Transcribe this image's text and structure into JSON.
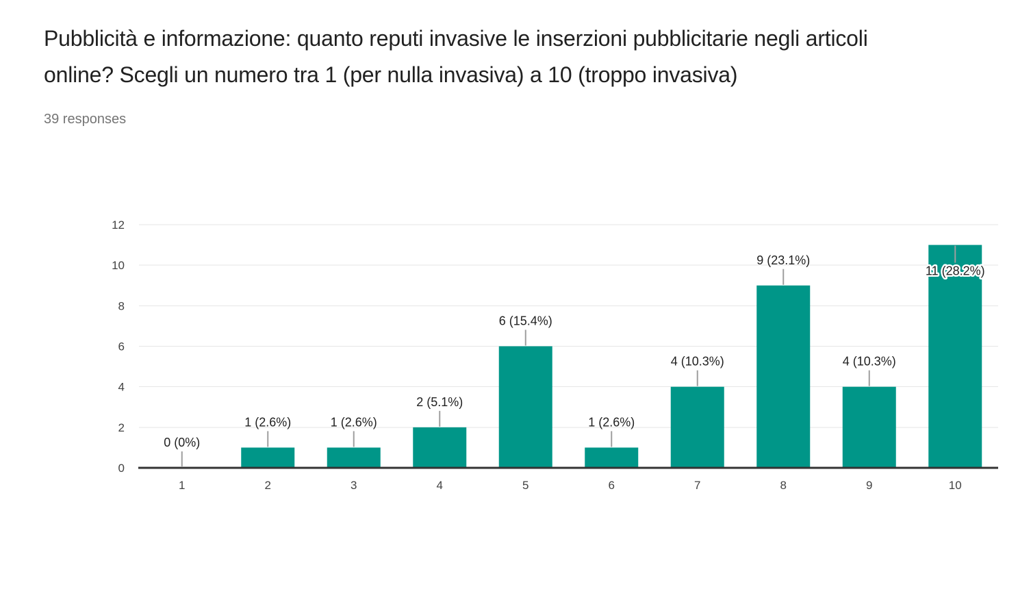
{
  "header": {
    "title": "Pubblicità e informazione: quanto reputi invasive le inserzioni pubblicitarie negli articoli online? Scegli un numero tra 1 (per nulla invasiva) a 10 (troppo invasiva)",
    "responses_count": "39 responses"
  },
  "chart_data": {
    "type": "bar",
    "categories": [
      "1",
      "2",
      "3",
      "4",
      "5",
      "6",
      "7",
      "8",
      "9",
      "10"
    ],
    "values": [
      0,
      1,
      1,
      2,
      6,
      1,
      4,
      9,
      4,
      11
    ],
    "bar_labels": [
      "0 (0%)",
      "1 (2.6%)",
      "1 (2.6%)",
      "2 (5.1%)",
      "6 (15.4%)",
      "1 (2.6%)",
      "4 (10.3%)",
      "9 (23.1%)",
      "4 (10.3%)",
      "11 (28.2%)"
    ],
    "title": "",
    "xlabel": "",
    "ylabel": "",
    "ylim": [
      0,
      12
    ],
    "yticks": [
      0,
      2,
      4,
      6,
      8,
      10,
      12
    ],
    "grid": true,
    "legend": "none",
    "bar_color": "#009688",
    "gridline_color": "#e6e6e6",
    "baseline_color": "#333333",
    "connector_color": "#9e9e9e",
    "annotation_color": "#212121",
    "tick_color": "#424242"
  }
}
